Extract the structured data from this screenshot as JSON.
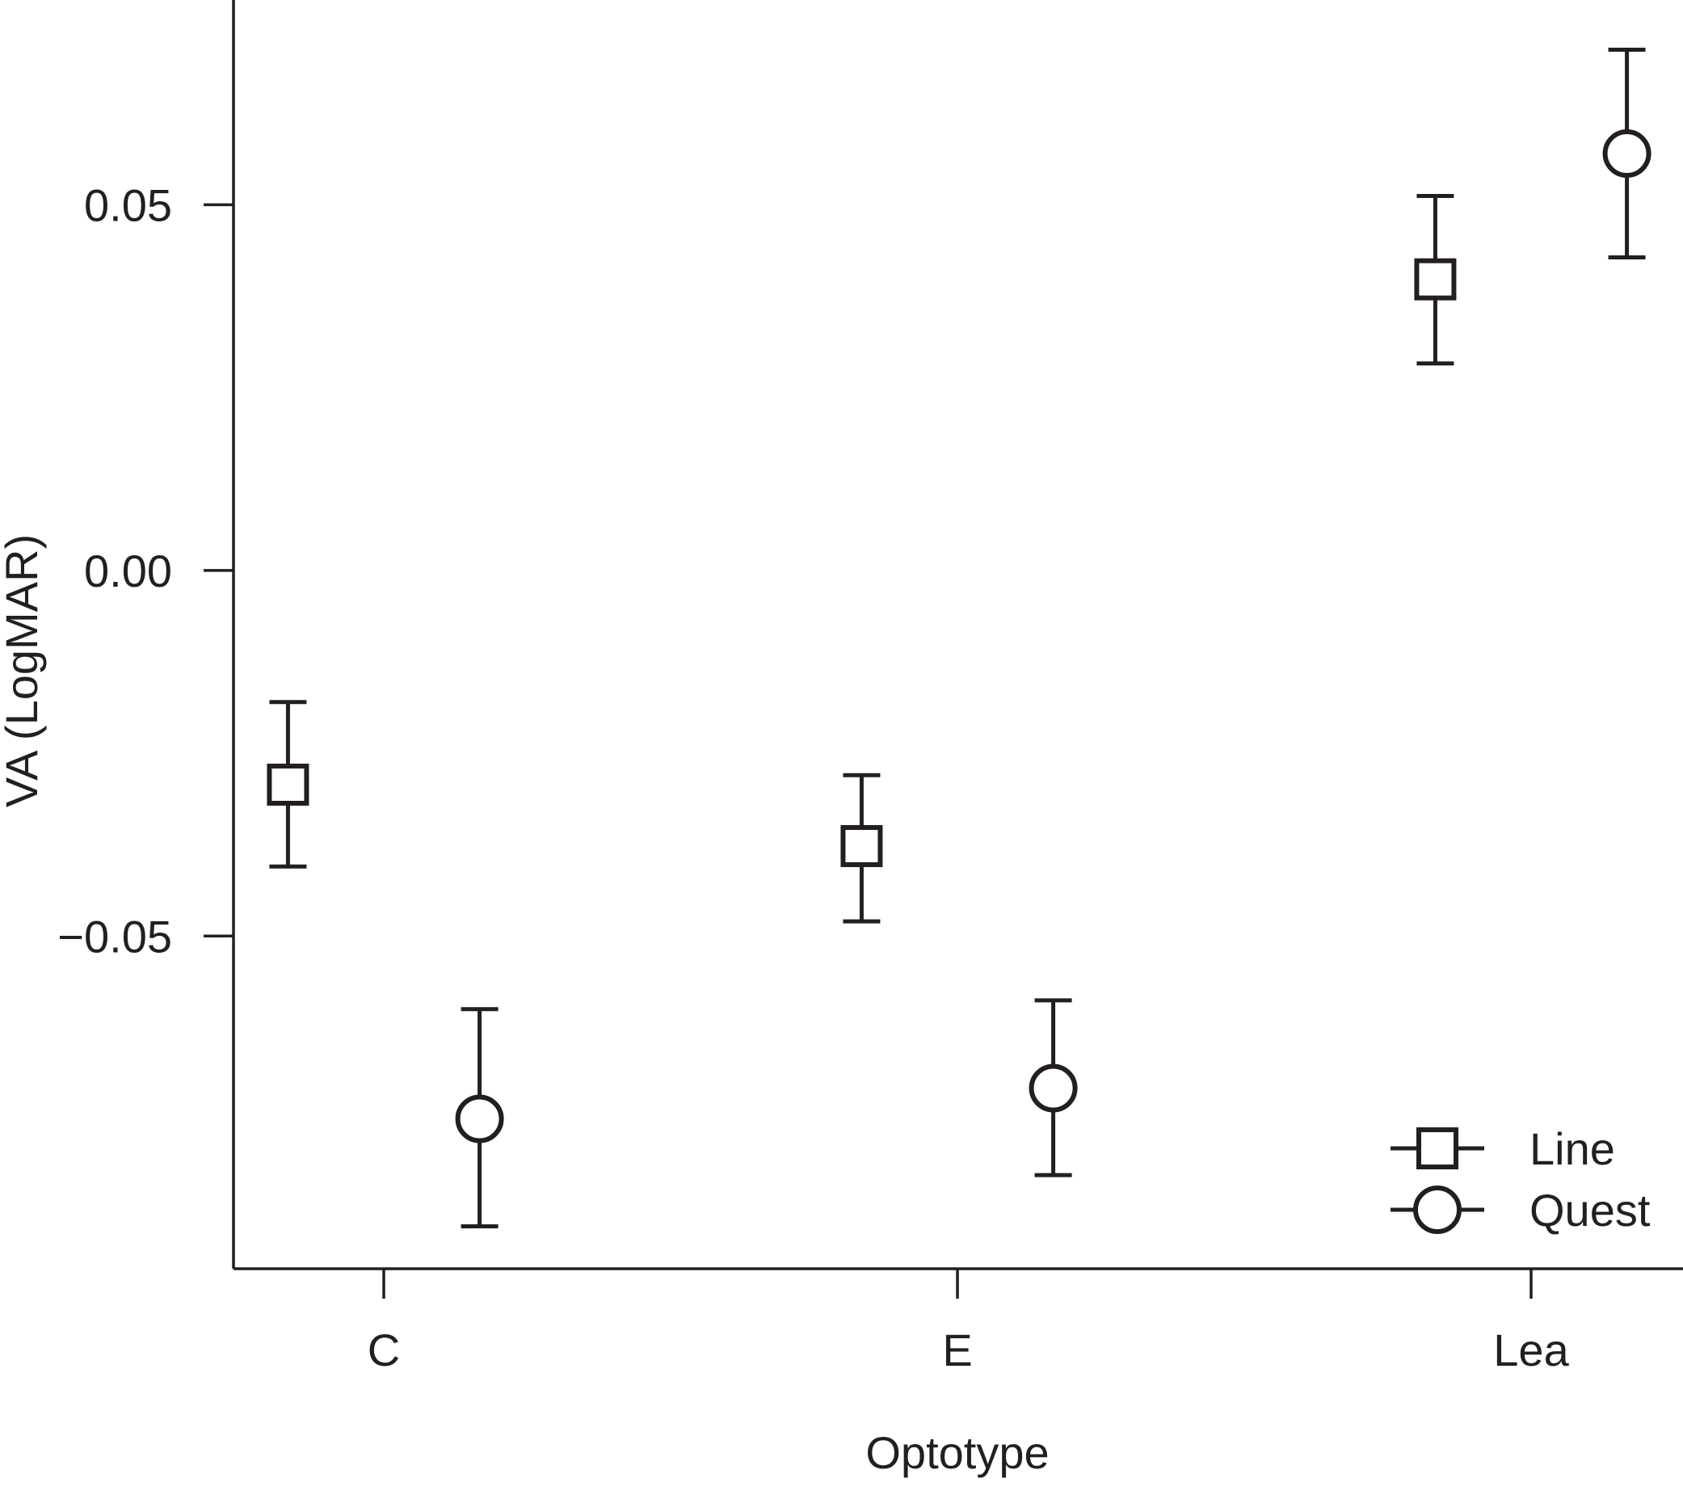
{
  "chart_data": {
    "type": "scatter",
    "xlabel": "Optotype",
    "ylabel": "VA (LogMAR)",
    "categories": [
      "C",
      "E",
      "Lea"
    ],
    "ylim": [
      -0.0955,
      0.078
    ],
    "yticks": [
      -0.05,
      0.0,
      0.05
    ],
    "ytick_labels": [
      "−0.05",
      "0.00",
      "0.05"
    ],
    "legend": {
      "position": "bottom-right",
      "entries": [
        "Line",
        "Quest"
      ]
    },
    "grid": false,
    "series": [
      {
        "name": "Line",
        "marker": "square",
        "offset": -0.167,
        "values": [
          -0.0293,
          -0.0377,
          0.0398
        ],
        "lower": [
          -0.0405,
          -0.048,
          0.0283
        ],
        "upper": [
          -0.018,
          -0.028,
          0.0512
        ]
      },
      {
        "name": "Quest",
        "marker": "circle",
        "offset": 0.167,
        "values": [
          -0.075,
          -0.0708,
          0.057
        ],
        "lower": [
          -0.0897,
          -0.0827,
          0.0428
        ],
        "upper": [
          -0.06,
          -0.0588,
          0.0712
        ]
      }
    ]
  },
  "colors": {
    "ink": "#231f20",
    "background": "#ffffff"
  }
}
